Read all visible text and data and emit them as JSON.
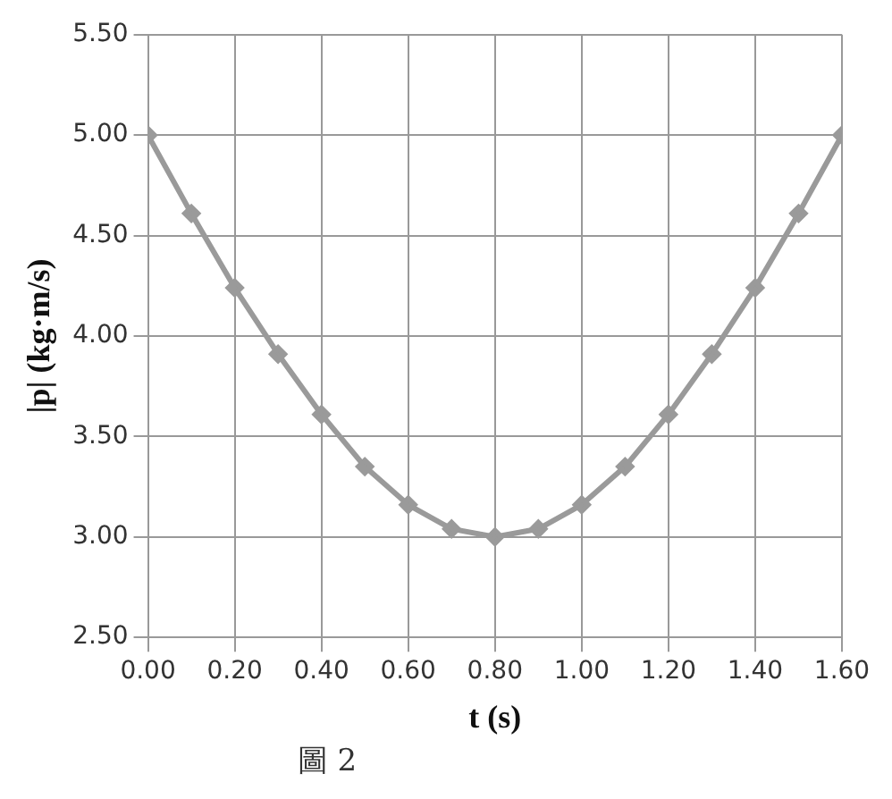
{
  "chart_data": {
    "type": "line",
    "xlabel": "t (s)",
    "ylabel": "|p| (kg·m/s)",
    "x": [
      0,
      0.1,
      0.2,
      0.3,
      0.4,
      0.5,
      0.6,
      0.7,
      0.8,
      0.9,
      1.0,
      1.1,
      1.2,
      1.3,
      1.4,
      1.5,
      1.6
    ],
    "series": [
      {
        "color": "#9a9a9a",
        "values": [
          5.0,
          4.61,
          4.24,
          3.91,
          3.61,
          3.35,
          3.16,
          3.04,
          3.0,
          3.04,
          3.16,
          3.35,
          3.61,
          3.91,
          4.24,
          4.61,
          5.0
        ]
      }
    ],
    "xlim": [
      0,
      1.6
    ],
    "xticks": [
      {
        "value": 0,
        "label": "0.00"
      },
      {
        "value": 0.2,
        "label": "0.20"
      },
      {
        "value": 0.4,
        "label": "0.40"
      },
      {
        "value": 0.6,
        "label": "0.60"
      },
      {
        "value": 0.8,
        "label": "0.80"
      },
      {
        "value": 1.0,
        "label": "1.00"
      },
      {
        "value": 1.2,
        "label": "1.20"
      },
      {
        "value": 1.4,
        "label": "1.40"
      },
      {
        "value": 1.6,
        "label": "1.60"
      }
    ],
    "ylim": [
      2.5,
      5.5
    ],
    "yticks": [
      {
        "value": 2.5,
        "label": "2.50"
      },
      {
        "value": 3.0,
        "label": "3.00"
      },
      {
        "value": 3.5,
        "label": "3.50"
      },
      {
        "value": 4.0,
        "label": "4.00"
      },
      {
        "value": 4.5,
        "label": "4.50"
      },
      {
        "value": 5.0,
        "label": "5.00"
      },
      {
        "value": 5.5,
        "label": "5.50"
      }
    ],
    "grid": true,
    "marker": "diamond",
    "line_style": "solid",
    "annotations": [
      "圖 2"
    ]
  }
}
